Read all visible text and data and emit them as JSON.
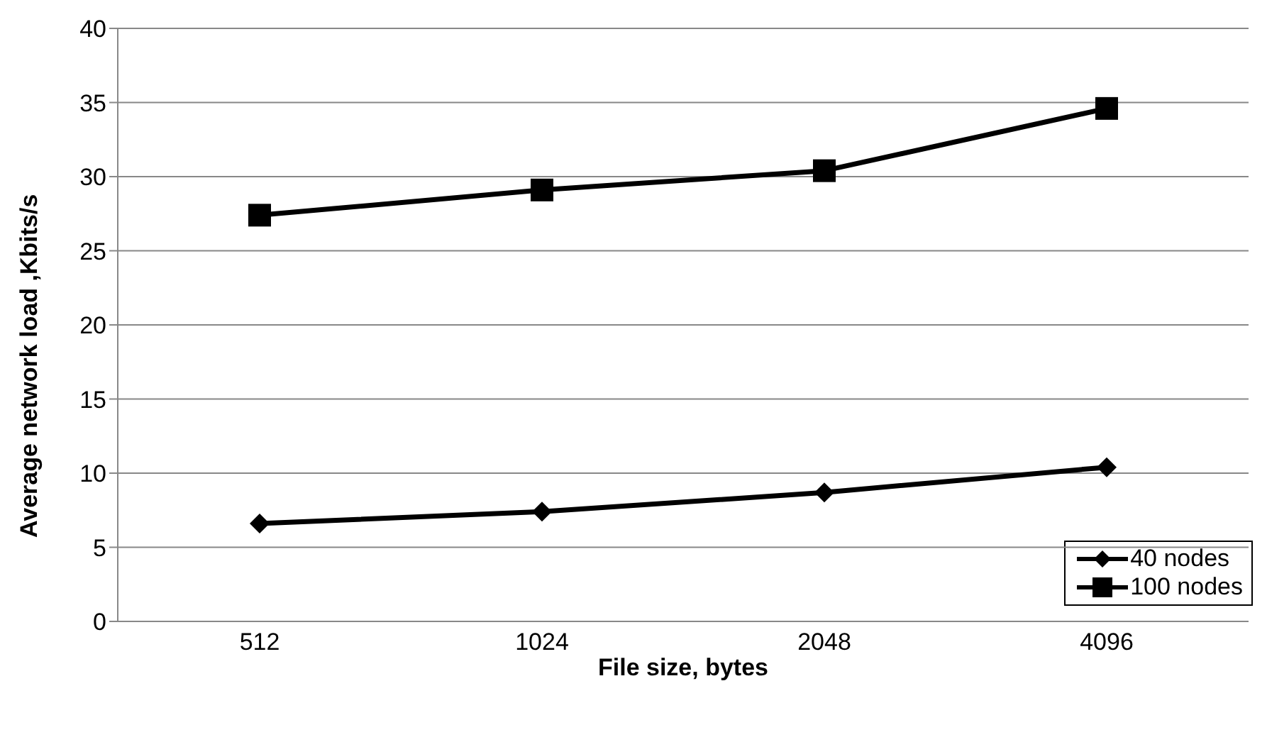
{
  "chart_data": {
    "type": "line",
    "xlabel": "File size, bytes",
    "ylabel": "Average network load ,Kbits/s",
    "categories": [
      "512",
      "1024",
      "2048",
      "4096"
    ],
    "series": [
      {
        "name": "40 nodes",
        "color": "#000000",
        "marker": "diamond",
        "values": [
          6.6,
          7.4,
          8.7,
          10.4
        ]
      },
      {
        "name": "100 nodes",
        "color": "#000000",
        "marker": "square",
        "values": [
          27.4,
          29.1,
          30.4,
          34.6
        ]
      }
    ],
    "ylim": [
      0,
      40
    ],
    "yticks": [
      0,
      5,
      10,
      15,
      20,
      25,
      30,
      35,
      40
    ],
    "grid": "y",
    "legend": "bottom right"
  }
}
